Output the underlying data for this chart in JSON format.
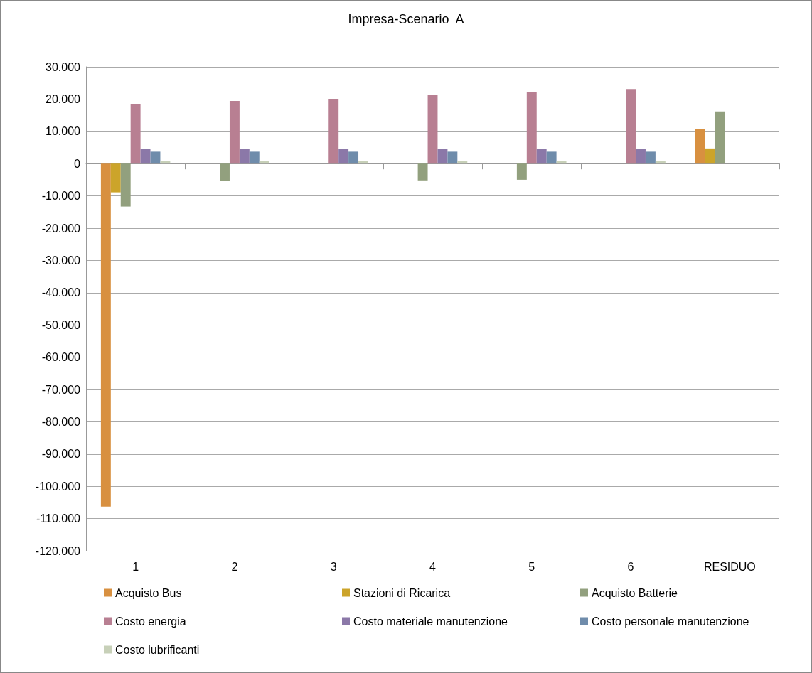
{
  "chart_data": {
    "type": "bar",
    "title": "Impresa-Scenario  A",
    "categories": [
      "1",
      "2",
      "3",
      "4",
      "5",
      "6",
      "RESIDUO"
    ],
    "series": [
      {
        "name": "Acquisto Bus",
        "color": "#d89040",
        "values": [
          -106300,
          null,
          null,
          null,
          null,
          null,
          10700
        ]
      },
      {
        "name": "Stazioni di Ricarica",
        "color": "#cca42a",
        "values": [
          -8900,
          null,
          null,
          null,
          null,
          null,
          4700
        ]
      },
      {
        "name": "Acquisto Batterie",
        "color": "#92a07e",
        "values": [
          -13300,
          -5300,
          null,
          -5200,
          -5000,
          null,
          16200
        ]
      },
      {
        "name": "Costo energia",
        "color": "#b87f92",
        "values": [
          18400,
          19400,
          20000,
          21200,
          22100,
          23100,
          null
        ]
      },
      {
        "name": "Costo materiale manutenzione",
        "color": "#8b78a8",
        "values": [
          4500,
          4500,
          4500,
          4500,
          4500,
          4500,
          null
        ]
      },
      {
        "name": "Costo personale manutenzione",
        "color": "#6f8cab",
        "values": [
          3700,
          3700,
          3700,
          3700,
          3700,
          3700,
          null
        ]
      },
      {
        "name": "Costo lubrificanti",
        "color": "#c7d0b8",
        "values": [
          900,
          900,
          900,
          900,
          900,
          900,
          null
        ]
      }
    ],
    "ylim": [
      -120000,
      30000
    ],
    "yticks": [
      {
        "value": -120000,
        "label": "-120.000"
      },
      {
        "value": -110000,
        "label": "-110.000"
      },
      {
        "value": -100000,
        "label": "-100.000"
      },
      {
        "value": -90000,
        "label": "-90.000"
      },
      {
        "value": -80000,
        "label": "-80.000"
      },
      {
        "value": -70000,
        "label": "-70.000"
      },
      {
        "value": -60000,
        "label": "-60.000"
      },
      {
        "value": -50000,
        "label": "-50.000"
      },
      {
        "value": -40000,
        "label": "-40.000"
      },
      {
        "value": -30000,
        "label": "-30.000"
      },
      {
        "value": -20000,
        "label": "-20.000"
      },
      {
        "value": -10000,
        "label": "-10.000"
      },
      {
        "value": 0,
        "label": "0"
      },
      {
        "value": 10000,
        "label": "10.000"
      },
      {
        "value": 20000,
        "label": "20.000"
      },
      {
        "value": 30000,
        "label": "30.000"
      }
    ],
    "grid": "y",
    "legend": "bottom"
  }
}
